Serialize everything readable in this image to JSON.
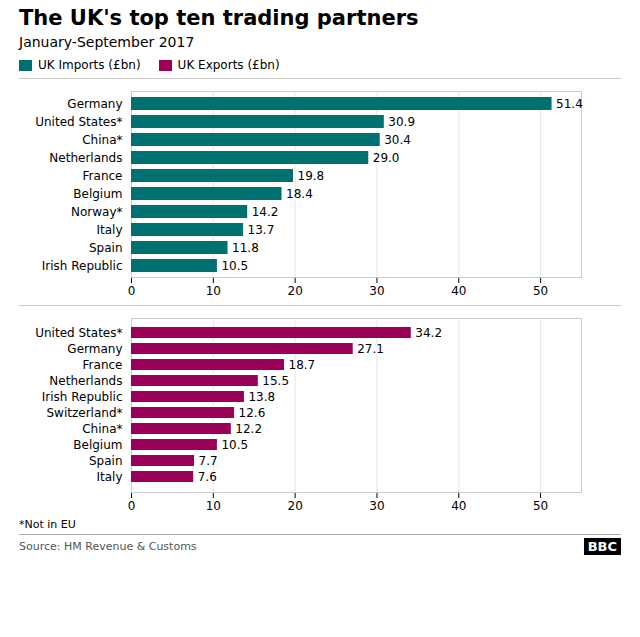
{
  "chart_data": [
    {
      "type": "bar",
      "orientation": "horizontal",
      "title": "The UK's top ten trading partners",
      "subtitle": "January-September 2017",
      "categories": [
        "Germany",
        "United States*",
        "China*",
        "Netherlands",
        "France",
        "Belgium",
        "Norway*",
        "Italy",
        "Spain",
        "Irish Republic"
      ],
      "series": [
        {
          "name": "UK Imports (£bn)",
          "color": "#007070",
          "values": [
            51.4,
            30.9,
            30.4,
            29.0,
            19.8,
            18.4,
            14.2,
            13.7,
            11.8,
            10.5
          ],
          "value_labels": [
            "51.4",
            "30.9",
            "30.4",
            "29.0",
            "19.8",
            "18.4",
            "14.2",
            "13.7",
            "11.8",
            "10.5"
          ]
        }
      ],
      "xlim": [
        0,
        55
      ],
      "xticks": [
        0,
        10,
        20,
        30,
        40,
        50
      ],
      "grid": true,
      "data_labels": true,
      "legend": "upper left"
    },
    {
      "type": "bar",
      "orientation": "horizontal",
      "categories": [
        "United States*",
        "Germany",
        "France",
        "Netherlands",
        "Irish Republic",
        "Switzerland*",
        "China*",
        "Belgium",
        "Spain",
        "Italy"
      ],
      "series": [
        {
          "name": "UK Exports (£bn)",
          "color": "#9B0057",
          "values": [
            34.2,
            27.1,
            18.7,
            15.5,
            13.8,
            12.6,
            12.2,
            10.5,
            7.7,
            7.6
          ],
          "value_labels": [
            "34.2",
            "27.1",
            "18.7",
            "15.5",
            "13.8",
            "12.6",
            "12.2",
            "10.5",
            "7.7",
            "7.6"
          ]
        }
      ],
      "xlim": [
        0,
        55
      ],
      "xticks": [
        0,
        10,
        20,
        30,
        40,
        50
      ],
      "grid": true,
      "data_labels": true,
      "legend": "upper left",
      "annotations": [
        "*Not in EU",
        "Source: HM Revenue & Customs",
        "BBC"
      ]
    }
  ]
}
